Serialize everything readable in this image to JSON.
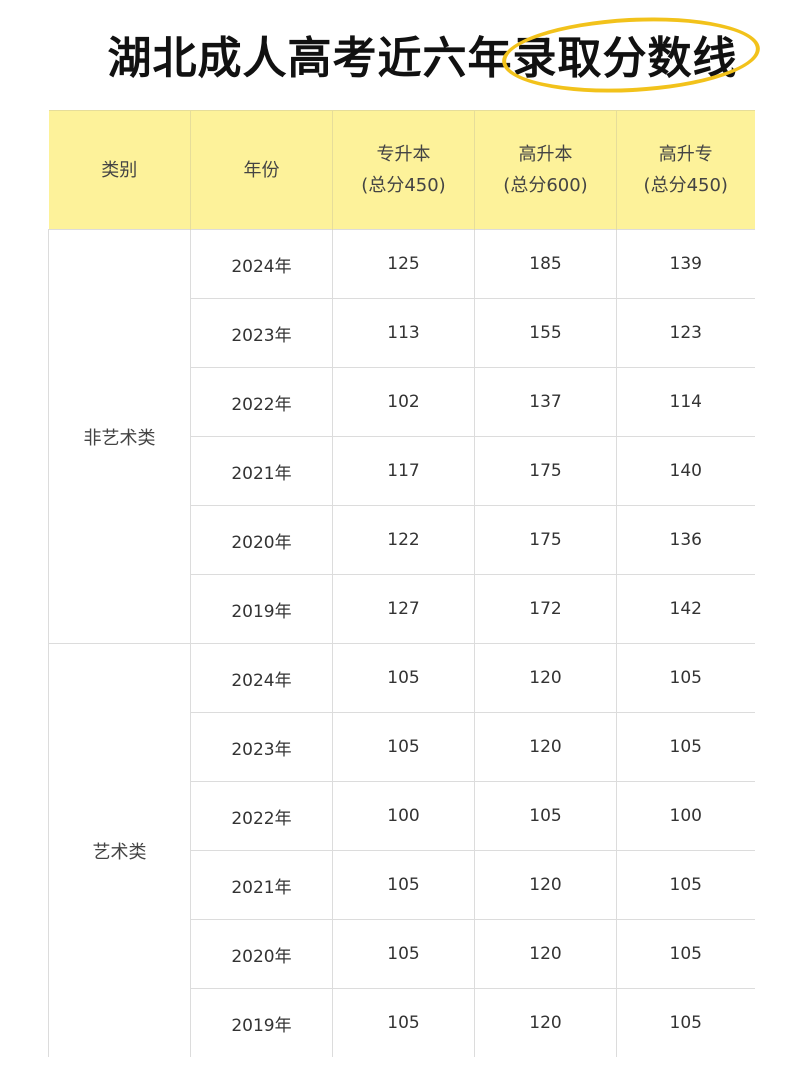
{
  "title": {
    "plain": "湖北成人高考近六年",
    "highlighted": "录取分数线",
    "highlight_color": "#f2c21b"
  },
  "colors": {
    "header_bg": "#fdf29a",
    "grid": "#dcdcdc"
  },
  "table": {
    "headers": [
      {
        "line1": "类别",
        "line2": ""
      },
      {
        "line1": "年份",
        "line2": ""
      },
      {
        "line1": "专升本",
        "line2": "(总分450)"
      },
      {
        "line1": "高升本",
        "line2": "(总分600)"
      },
      {
        "line1": "高升专",
        "line2": "(总分450)"
      }
    ],
    "groups": [
      {
        "category": "非艺术类",
        "rows": [
          {
            "year": "2024年",
            "zsb": "125",
            "gsb": "185",
            "gsz": "139"
          },
          {
            "year": "2023年",
            "zsb": "113",
            "gsb": "155",
            "gsz": "123"
          },
          {
            "year": "2022年",
            "zsb": "102",
            "gsb": "137",
            "gsz": "114"
          },
          {
            "year": "2021年",
            "zsb": "117",
            "gsb": "175",
            "gsz": "140"
          },
          {
            "year": "2020年",
            "zsb": "122",
            "gsb": "175",
            "gsz": "136"
          },
          {
            "year": "2019年",
            "zsb": "127",
            "gsb": "172",
            "gsz": "142"
          }
        ]
      },
      {
        "category": "艺术类",
        "rows": [
          {
            "year": "2024年",
            "zsb": "105",
            "gsb": "120",
            "gsz": "105"
          },
          {
            "year": "2023年",
            "zsb": "105",
            "gsb": "120",
            "gsz": "105"
          },
          {
            "year": "2022年",
            "zsb": "100",
            "gsb": "105",
            "gsz": "100"
          },
          {
            "year": "2021年",
            "zsb": "105",
            "gsb": "120",
            "gsz": "105"
          },
          {
            "year": "2020年",
            "zsb": "105",
            "gsb": "120",
            "gsz": "105"
          },
          {
            "year": "2019年",
            "zsb": "105",
            "gsb": "120",
            "gsz": "105"
          }
        ]
      }
    ]
  }
}
